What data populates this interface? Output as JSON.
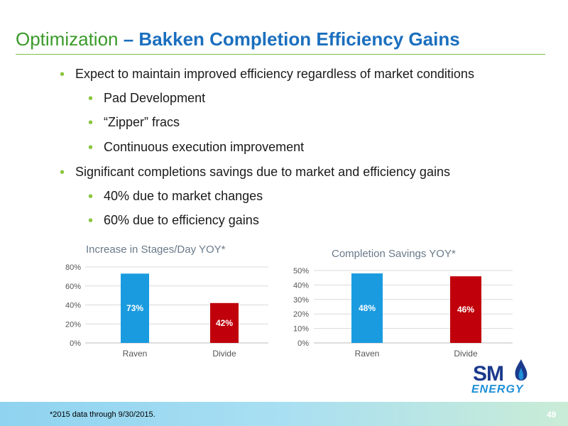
{
  "title": {
    "prefix": "Optimization",
    "separator": " – ",
    "main": "Bakken Completion Efficiency Gains"
  },
  "bullets": [
    {
      "text": "Expect to maintain improved efficiency regardless of market conditions",
      "level": 1
    },
    {
      "text": "Pad Development",
      "level": 2
    },
    {
      "text": "“Zipper” fracs",
      "level": 2
    },
    {
      "text": "Continuous execution improvement",
      "level": 2
    },
    {
      "text": "Significant completions savings due to market and efficiency gains",
      "level": 1
    },
    {
      "text": "40% due to market changes",
      "level": 2
    },
    {
      "text": "60% due to efficiency gains",
      "level": 2
    }
  ],
  "chart_data": [
    {
      "type": "bar",
      "title": "Increase in Stages/Day YOY*",
      "categories": [
        "Raven",
        "Divide"
      ],
      "values": [
        73,
        42
      ],
      "value_labels": [
        "73%",
        "42%"
      ],
      "colors": [
        "#1a9be0",
        "#c0000a"
      ],
      "yticks": [
        "0%",
        "20%",
        "40%",
        "60%",
        "80%"
      ],
      "ylim": [
        0,
        80
      ],
      "grid": true
    },
    {
      "type": "bar",
      "title": "Completion Savings YOY*",
      "categories": [
        "Raven",
        "Divide"
      ],
      "values": [
        48,
        46
      ],
      "value_labels": [
        "48%",
        "46%"
      ],
      "colors": [
        "#1a9be0",
        "#c0000a"
      ],
      "yticks": [
        "0%",
        "10%",
        "20%",
        "30%",
        "40%",
        "50%"
      ],
      "ylim": [
        0,
        50
      ],
      "grid": true
    }
  ],
  "logo": {
    "top": "SM",
    "bottom": "ENERGY"
  },
  "footer": {
    "note": "*2015 data through 9/30/2015.",
    "page": "49"
  }
}
